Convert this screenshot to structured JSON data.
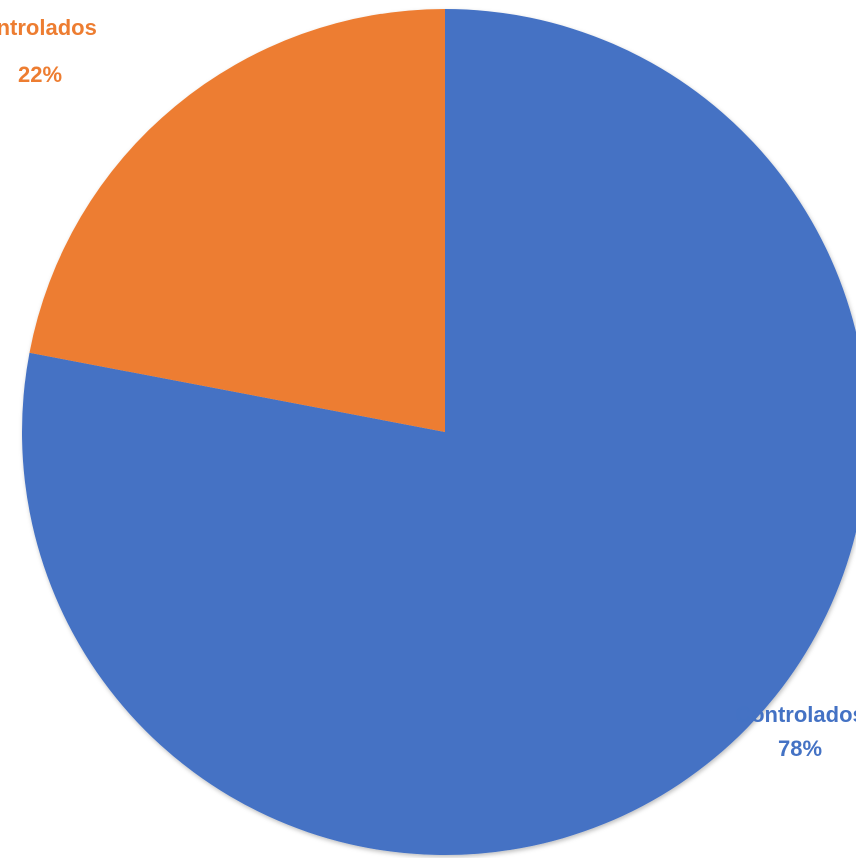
{
  "chart_data": {
    "type": "pie",
    "title": "",
    "categories": [
      "Controlados",
      "No controlados"
    ],
    "values": [
      78,
      22
    ],
    "slices": [
      {
        "name": "Controlados",
        "value": 78,
        "label_text": "Controlados",
        "percent_text": "78%",
        "color": "#4472C4"
      },
      {
        "name": "No controlados",
        "value": 22,
        "label_text": "ontrolados",
        "percent_text": "22%",
        "color": "#ED7D31"
      }
    ],
    "start_angle_deg": 0,
    "direction": "clockwise",
    "legend": "none",
    "data_labels": "outside, category name and percentage"
  }
}
